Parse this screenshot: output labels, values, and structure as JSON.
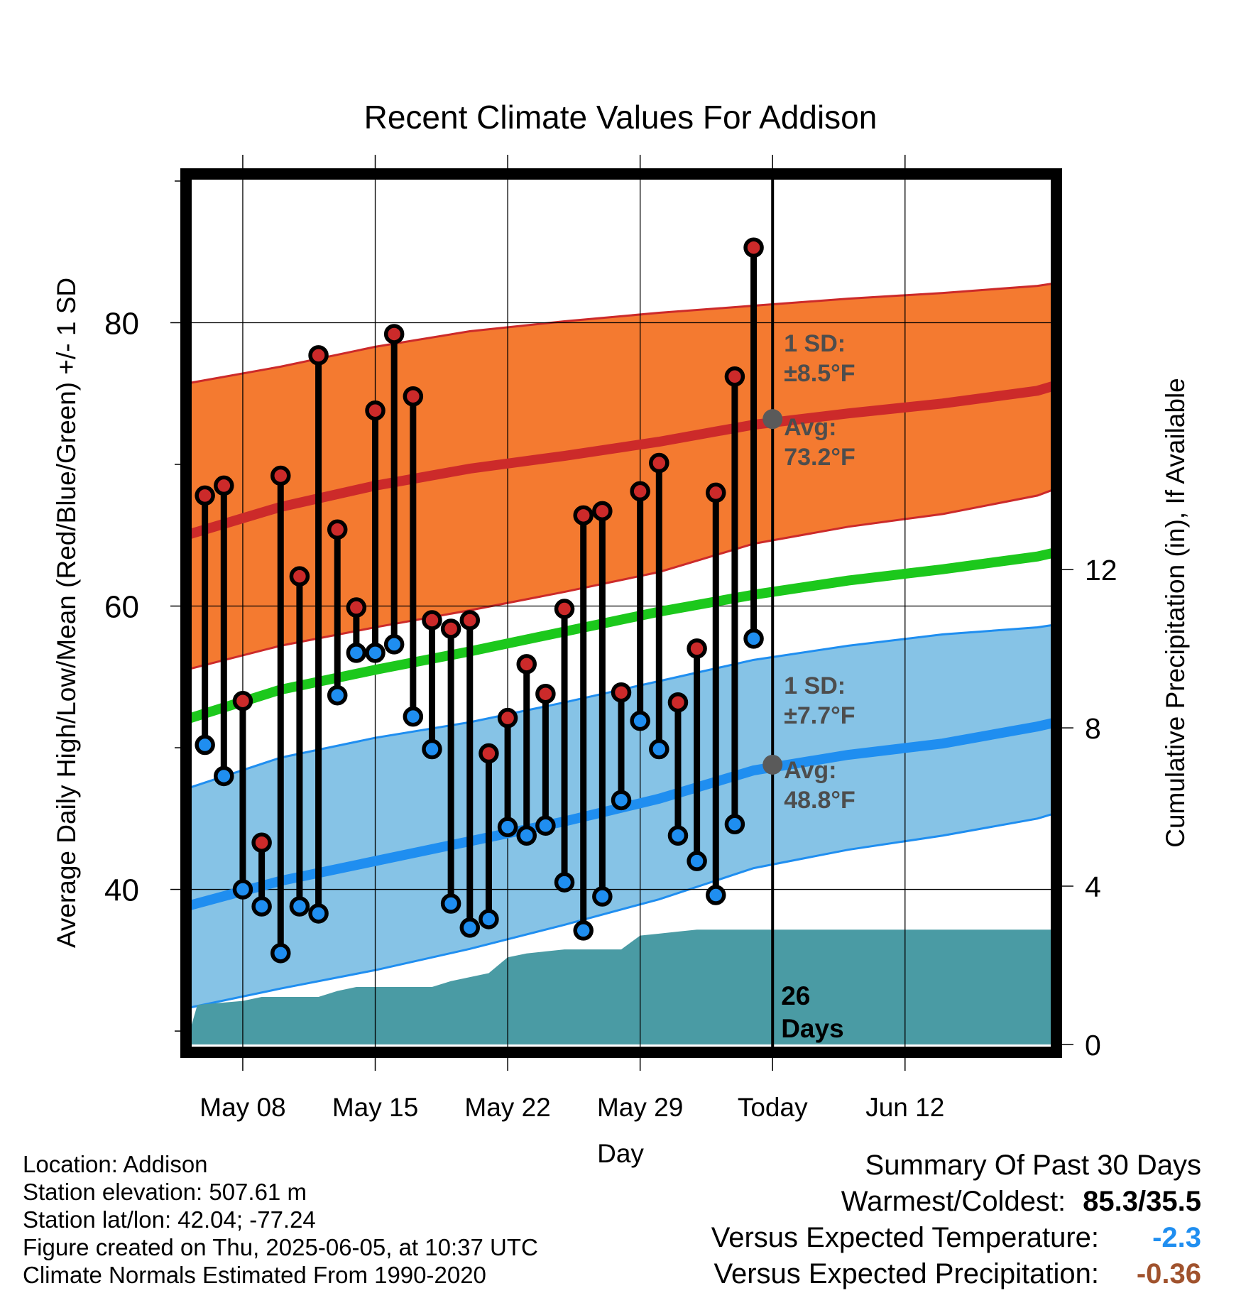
{
  "colors": {
    "high_band": "#f47a30",
    "high_line": "#cc2a2a",
    "low_band": "#86c3e6",
    "low_line": "#1f8ef0",
    "mean_line": "#1cc81c",
    "precip": "#4a9ba4",
    "high_marker": "#cc2a2a",
    "low_marker": "#1f8ef0",
    "avg_marker": "#5a5a5a",
    "annot_text": "#4d4d4d",
    "temp_anomaly": "#1f8ef0",
    "precip_anomaly": "#a0522d"
  },
  "chart_data": {
    "type": "line",
    "title": "Recent Climate Values For Addison",
    "xlabel": "Day",
    "ylabel": "Average Daily High/Low/Mean (Red/Blue/Green) +/- 1 SD",
    "y2label": "Cumulative Precipitation (in), If Available",
    "ylim": [
      28.5,
      90.5
    ],
    "y2lim": [
      -0.2,
      22
    ],
    "xlim": [
      0,
      46
    ],
    "yticks": [
      40,
      60,
      80
    ],
    "y2ticks": [
      0,
      4,
      8,
      12
    ],
    "x_ticks": [
      {
        "x": 3,
        "label": "May 08"
      },
      {
        "x": 10,
        "label": "May 15"
      },
      {
        "x": 17,
        "label": "May 22"
      },
      {
        "x": 24,
        "label": "May 29"
      },
      {
        "x": 31,
        "label": "Today"
      },
      {
        "x": 38,
        "label": "Jun 12"
      }
    ],
    "today_x": 31,
    "days_label": [
      "26",
      "Days"
    ],
    "observed": {
      "x": [
        1,
        2,
        3,
        4,
        5,
        6,
        7,
        8,
        9,
        10,
        11,
        12,
        13,
        14,
        15,
        16,
        17,
        18,
        19,
        20,
        21,
        22,
        23,
        24,
        25,
        26,
        27,
        28,
        29,
        30
      ],
      "high": [
        67.8,
        68.5,
        53.3,
        43.3,
        69.2,
        62.1,
        77.7,
        65.4,
        59.9,
        73.8,
        79.2,
        74.8,
        59.0,
        58.4,
        59.0,
        49.6,
        52.1,
        55.9,
        53.8,
        59.8,
        66.4,
        66.7,
        53.9,
        68.1,
        70.1,
        53.2,
        57.0,
        68.0,
        76.2,
        85.3
      ],
      "low": [
        50.2,
        48.0,
        40.0,
        38.8,
        35.5,
        38.8,
        38.3,
        53.7,
        56.7,
        56.7,
        57.3,
        52.2,
        49.9,
        39.0,
        37.3,
        37.9,
        44.4,
        43.8,
        44.5,
        40.5,
        37.1,
        39.5,
        46.3,
        51.9,
        49.9,
        43.8,
        42.0,
        39.6,
        44.6,
        57.7
      ]
    },
    "normals": {
      "x": [
        0,
        5,
        10,
        15,
        20,
        25,
        30,
        35,
        40,
        45,
        46
      ],
      "high_mean": [
        65.0,
        67.0,
        68.5,
        69.7,
        70.6,
        71.6,
        72.8,
        73.6,
        74.3,
        75.2,
        75.6
      ],
      "high_upper": [
        75.7,
        76.9,
        78.3,
        79.4,
        80.1,
        80.7,
        81.2,
        81.7,
        82.1,
        82.6,
        82.8
      ],
      "high_lower": [
        55.5,
        57.2,
        58.5,
        59.7,
        61.0,
        62.4,
        64.4,
        65.6,
        66.5,
        67.8,
        68.3
      ],
      "mean": [
        52.0,
        54.1,
        55.5,
        56.8,
        58.2,
        59.6,
        60.8,
        61.8,
        62.6,
        63.5,
        63.8
      ],
      "low_mean": [
        38.8,
        40.6,
        42.0,
        43.4,
        44.8,
        46.4,
        48.4,
        49.5,
        50.3,
        51.5,
        51.8
      ],
      "low_upper": [
        47.1,
        49.3,
        50.7,
        51.8,
        53.2,
        54.7,
        56.2,
        57.2,
        58.0,
        58.5,
        58.7
      ],
      "low_lower": [
        31.6,
        33.0,
        34.3,
        35.8,
        37.5,
        39.3,
        41.5,
        42.8,
        43.8,
        45.0,
        45.4
      ]
    },
    "precip": {
      "x": [
        0,
        0.6,
        3,
        4,
        7,
        8,
        9,
        10,
        13,
        14,
        16,
        17,
        18,
        19,
        20,
        23,
        24,
        25,
        26,
        27,
        30,
        31,
        46
      ],
      "cumulative": [
        0,
        1.0,
        1.1,
        1.2,
        1.2,
        1.35,
        1.45,
        1.45,
        1.45,
        1.6,
        1.8,
        2.2,
        2.3,
        2.35,
        2.4,
        2.4,
        2.75,
        2.8,
        2.85,
        2.9,
        2.9,
        2.9,
        2.9
      ]
    },
    "annotations": {
      "high": {
        "sd_label": "1 SD:",
        "sd_value": "±8.5°F",
        "avg_label": "Avg:",
        "avg_value": "73.2°F",
        "avg": 73.2
      },
      "low": {
        "sd_label": "1 SD:",
        "sd_value": "±7.7°F",
        "avg_label": "Avg:",
        "avg_value": "48.8°F",
        "avg": 48.8
      }
    }
  },
  "footer": {
    "location": "Location: Addison",
    "elevation": "Station elevation: 507.61 m",
    "latlon": "Station lat/lon: 42.04; -77.24",
    "created": "Figure created on Thu, 2025-06-05, at 10:37 UTC",
    "normals": "Climate Normals Estimated From 1990-2020"
  },
  "summary": {
    "title": "Summary Of Past 30 Days",
    "warm_cold_label": "Warmest/Coldest:",
    "warm_cold_value": "85.3/35.5",
    "temp_label": "Versus Expected Temperature:",
    "temp_value": "-2.3",
    "precip_label": "Versus Expected Precipitation:",
    "precip_value": "-0.36"
  }
}
